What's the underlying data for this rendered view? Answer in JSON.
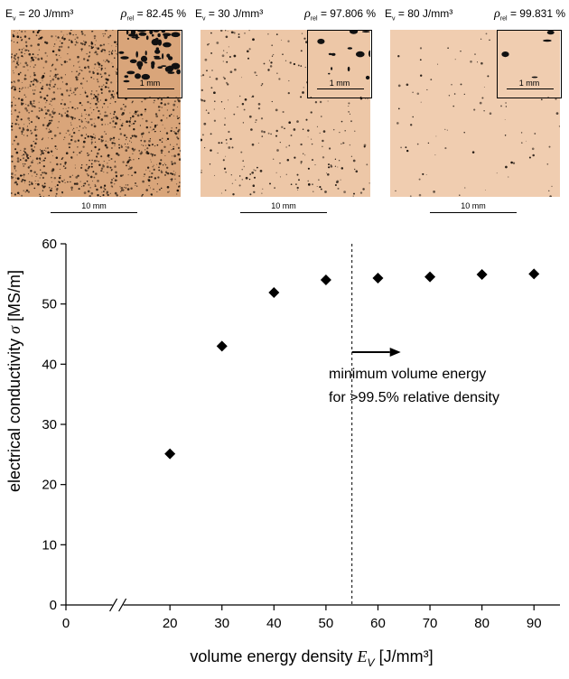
{
  "panels": [
    {
      "ev_prefix": "E",
      "ev_sub": "v",
      "ev_value": " = 20 J/mm³",
      "rho_symbol": "ρ",
      "rho_sub": "rel",
      "rho_value": " =   82.45 %",
      "inset_scale": "1 mm",
      "scale": "10 mm",
      "porosity": 0.45,
      "tone": "#d9a57a"
    },
    {
      "ev_prefix": "E",
      "ev_sub": "v",
      "ev_value": " = 30 J/mm³",
      "rho_symbol": "ρ",
      "rho_sub": "rel",
      "rho_value": " = 97.806 %",
      "inset_scale": "1 mm",
      "scale": "10 mm",
      "porosity": 0.1,
      "tone": "#edc7a7"
    },
    {
      "ev_prefix": "E",
      "ev_sub": "v",
      "ev_value": " = 80 J/mm³",
      "rho_symbol": "ρ",
      "rho_sub": "rel",
      "rho_value": " = 99.831 %",
      "inset_scale": "1 mm",
      "scale": "10 mm",
      "porosity": 0.03,
      "tone": "#f0cdb0"
    }
  ],
  "chart_data": {
    "type": "scatter",
    "x": [
      20,
      30,
      40,
      50,
      60,
      70,
      80,
      90
    ],
    "y": [
      25.1,
      43.0,
      51.9,
      54.0,
      54.3,
      54.5,
      54.9,
      55.0
    ],
    "xlim": [
      0,
      95
    ],
    "ylim": [
      0,
      60
    ],
    "xticks": [
      0,
      20,
      30,
      40,
      50,
      60,
      70,
      80,
      90
    ],
    "yticks": [
      0,
      10,
      20,
      30,
      40,
      50,
      60
    ],
    "xlabel": "volume energy density",
    "xlabel_symbol": "E",
    "xlabel_sub": "V",
    "xlabel_unit": "[J/mm³]",
    "ylabel": "electrical conductivity",
    "ylabel_symbol": "σ",
    "ylabel_unit": "[MS/m]",
    "axis_break": true,
    "threshold_x": 55,
    "annotation_line1": "minimum volume energy",
    "annotation_line2": "for >99.5% relative density",
    "marker": "diamond",
    "grid": false
  }
}
